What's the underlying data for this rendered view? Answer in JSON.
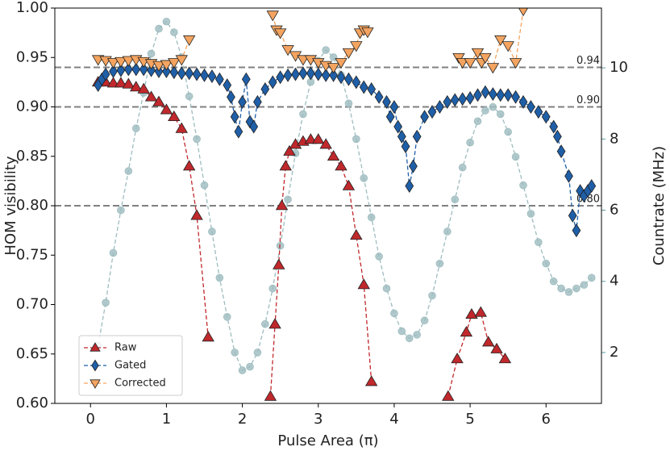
{
  "chart_data": {
    "type": "line",
    "xlabel": "Pulse Area (π)",
    "ylabel": "HOM visibility",
    "y2label": "Countrate (MHz)",
    "y2color": "#5f9a9e",
    "xlim": [
      -0.47,
      6.73
    ],
    "xticks": [
      0,
      1,
      2,
      3,
      4,
      5,
      6
    ],
    "ylim": [
      0.6,
      1.0
    ],
    "yticks": [
      {
        "value": 0.6,
        "label": "0.60"
      },
      0.65,
      {
        "value": 0.7,
        "label": "0.70"
      },
      0.75,
      {
        "value": 0.8,
        "label": "0.80"
      },
      0.85,
      {
        "value": 0.9,
        "label": "0.90"
      },
      0.95,
      {
        "value": 1.0,
        "label": "1.00"
      }
    ],
    "y2lim": [
      0.57,
      11.68
    ],
    "y2ticks": [
      2,
      4,
      6,
      8,
      10
    ],
    "hlines": [
      {
        "value": 0.94,
        "label": "0.94"
      },
      {
        "value": 0.9,
        "label": "0.90"
      },
      {
        "value": 0.8,
        "label": "0.80"
      }
    ],
    "legend": "lower left",
    "series": [
      {
        "name": "Raw",
        "color": "#c0282c",
        "marker": "triangle-up",
        "x": [
          0.1,
          0.2,
          0.3,
          0.4,
          0.5,
          0.6,
          0.7,
          0.8,
          0.9,
          1.0,
          1.1,
          1.2,
          1.3,
          1.4,
          1.55,
          2.0,
          2.37,
          2.43,
          2.48,
          2.52,
          2.57,
          2.62,
          2.7,
          2.8,
          2.9,
          3.0,
          3.1,
          3.2,
          3.3,
          3.4,
          3.5,
          3.6,
          3.7,
          4.2,
          4.71,
          4.83,
          4.95,
          5.02,
          5.14,
          5.24,
          5.35,
          5.46
        ],
        "values": [
          0.925,
          0.925,
          0.924,
          0.924,
          0.923,
          0.92,
          0.918,
          0.91,
          0.905,
          0.897,
          0.89,
          0.878,
          0.84,
          0.79,
          0.667,
          null,
          0.607,
          0.68,
          0.74,
          0.8,
          0.84,
          0.855,
          0.862,
          0.865,
          0.867,
          0.867,
          0.862,
          0.85,
          0.84,
          0.82,
          0.77,
          0.72,
          0.622,
          null,
          0.607,
          0.645,
          0.672,
          0.69,
          0.692,
          0.662,
          0.655,
          0.645
        ]
      },
      {
        "name": "Gated",
        "color": "#1f5fa8",
        "marker": "diamond",
        "x": [
          0.1,
          0.15,
          0.2,
          0.3,
          0.4,
          0.5,
          0.6,
          0.7,
          0.8,
          0.9,
          1.0,
          1.1,
          1.2,
          1.3,
          1.4,
          1.5,
          1.6,
          1.7,
          1.8,
          1.85,
          1.9,
          1.95,
          2.0,
          2.05,
          2.1,
          2.15,
          2.2,
          2.3,
          2.4,
          2.5,
          2.6,
          2.7,
          2.8,
          2.9,
          3.0,
          3.1,
          3.2,
          3.3,
          3.4,
          3.5,
          3.6,
          3.7,
          3.8,
          3.9,
          3.95,
          4.0,
          4.05,
          4.1,
          4.15,
          4.2,
          4.25,
          4.3,
          4.4,
          4.5,
          4.6,
          4.7,
          4.8,
          4.9,
          5.0,
          5.1,
          5.2,
          5.3,
          5.4,
          5.5,
          5.6,
          5.7,
          5.8,
          5.9,
          6.0,
          6.1,
          6.15,
          6.2,
          6.3,
          6.35,
          6.4,
          6.45,
          6.5,
          6.55,
          6.6
        ],
        "values": [
          0.922,
          0.928,
          0.933,
          0.936,
          0.937,
          0.938,
          0.938,
          0.938,
          0.937,
          0.936,
          0.936,
          0.935,
          0.934,
          0.934,
          0.933,
          0.932,
          0.931,
          0.928,
          0.922,
          0.91,
          0.89,
          0.875,
          0.905,
          0.928,
          0.885,
          0.88,
          0.905,
          0.918,
          0.925,
          0.93,
          0.932,
          0.933,
          0.934,
          0.934,
          0.933,
          0.932,
          0.932,
          0.93,
          0.928,
          0.925,
          0.92,
          0.918,
          0.91,
          0.905,
          0.89,
          0.9,
          0.88,
          0.87,
          0.86,
          0.82,
          0.84,
          0.87,
          0.89,
          0.895,
          0.9,
          0.905,
          0.907,
          0.908,
          0.909,
          0.912,
          0.915,
          0.913,
          0.912,
          0.912,
          0.91,
          0.905,
          0.9,
          0.895,
          0.89,
          0.88,
          0.87,
          0.855,
          0.83,
          0.79,
          0.775,
          0.815,
          0.81,
          0.815,
          0.82
        ]
      },
      {
        "name": "Corrected",
        "color": "#f4a460",
        "marker": "triangle-down",
        "x": [
          0.1,
          0.2,
          0.3,
          0.4,
          0.5,
          0.6,
          0.7,
          0.8,
          0.9,
          1.0,
          1.1,
          1.2,
          1.3,
          1.8,
          2.4,
          2.45,
          2.5,
          2.6,
          2.7,
          2.8,
          2.9,
          3.0,
          3.1,
          3.2,
          3.3,
          3.4,
          3.5,
          3.55,
          3.6,
          3.65,
          4.2,
          4.85,
          4.9,
          5.0,
          5.1,
          5.15,
          5.2,
          5.3,
          5.4,
          5.5,
          5.6,
          5.7
        ],
        "values": [
          0.948,
          0.947,
          0.945,
          0.946,
          0.947,
          0.948,
          0.946,
          0.944,
          0.942,
          0.943,
          0.945,
          0.948,
          0.968,
          null,
          0.993,
          0.978,
          0.975,
          0.958,
          0.952,
          0.948,
          0.948,
          0.945,
          0.942,
          0.94,
          0.945,
          0.955,
          0.962,
          0.975,
          0.978,
          0.976,
          null,
          0.95,
          0.945,
          0.945,
          0.955,
          0.945,
          0.95,
          0.94,
          0.968,
          0.962,
          0.945,
          0.998
        ]
      },
      {
        "axis": "y2",
        "color": "#9dbcbf",
        "marker": "circle",
        "x": [
          0.1,
          0.2,
          0.3,
          0.4,
          0.5,
          0.6,
          0.7,
          0.8,
          0.9,
          1.0,
          1.1,
          1.2,
          1.3,
          1.4,
          1.5,
          1.6,
          1.7,
          1.8,
          1.9,
          2.0,
          2.1,
          2.2,
          2.3,
          2.4,
          2.5,
          2.6,
          2.7,
          2.8,
          2.9,
          3.0,
          3.1,
          3.2,
          3.3,
          3.4,
          3.5,
          3.6,
          3.7,
          3.8,
          3.9,
          4.0,
          4.1,
          4.2,
          4.3,
          4.4,
          4.5,
          4.6,
          4.7,
          4.8,
          4.9,
          5.0,
          5.1,
          5.2,
          5.3,
          5.4,
          5.5,
          5.6,
          5.7,
          5.8,
          5.9,
          6.0,
          6.1,
          6.2,
          6.3,
          6.4,
          6.5,
          6.6
        ],
        "values": [
          2.2,
          3.4,
          4.8,
          6.0,
          7.1,
          8.3,
          9.3,
          10.4,
          11.1,
          11.3,
          11.0,
          10.3,
          9.2,
          8.0,
          6.7,
          5.4,
          4.1,
          3.0,
          2.0,
          1.5,
          1.6,
          2.0,
          2.8,
          3.8,
          5.0,
          6.3,
          7.6,
          8.7,
          9.6,
          10.2,
          10.5,
          10.3,
          9.8,
          9.0,
          8.0,
          6.9,
          5.8,
          4.7,
          3.8,
          3.1,
          2.6,
          2.4,
          2.5,
          2.9,
          3.6,
          4.5,
          5.4,
          6.3,
          7.2,
          7.9,
          8.5,
          8.8,
          8.9,
          8.7,
          8.2,
          7.5,
          6.7,
          5.9,
          5.1,
          4.5,
          4.0,
          3.8,
          3.7,
          3.8,
          3.9,
          4.1
        ]
      }
    ]
  }
}
